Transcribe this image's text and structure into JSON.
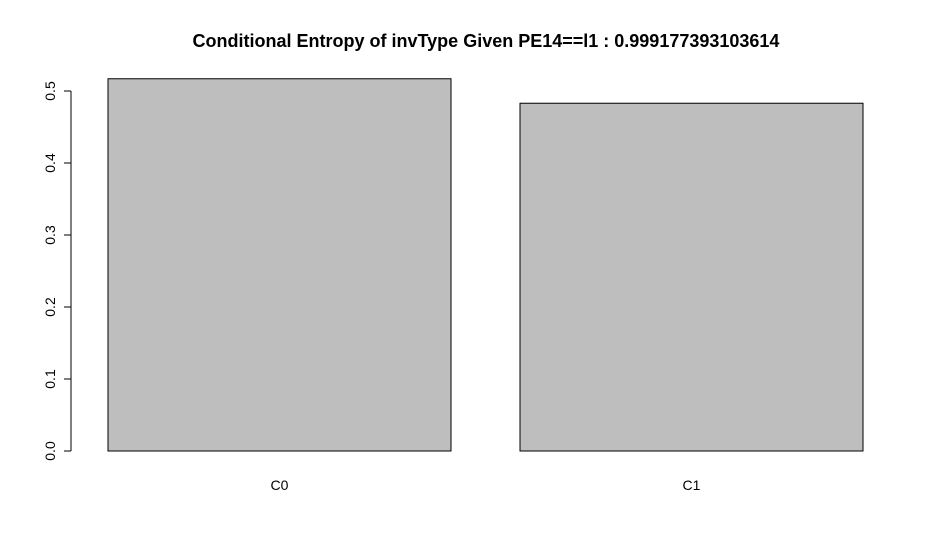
{
  "chart_data": {
    "type": "bar",
    "title": "Conditional Entropy of invType Given PE14==l1 :  0.999177393103614",
    "xlabel": "",
    "ylabel": "",
    "categories": [
      "C0",
      "C1"
    ],
    "values": [
      0.517,
      0.483
    ],
    "ylim": [
      0,
      0.5
    ],
    "yticks": [
      0.0,
      0.1,
      0.2,
      0.3,
      0.4,
      0.5
    ],
    "ytick_labels": [
      "0.0",
      "0.1",
      "0.2",
      "0.3",
      "0.4",
      "0.5"
    ],
    "bar_color": "#bebebe",
    "grid": false,
    "legend": "none"
  }
}
